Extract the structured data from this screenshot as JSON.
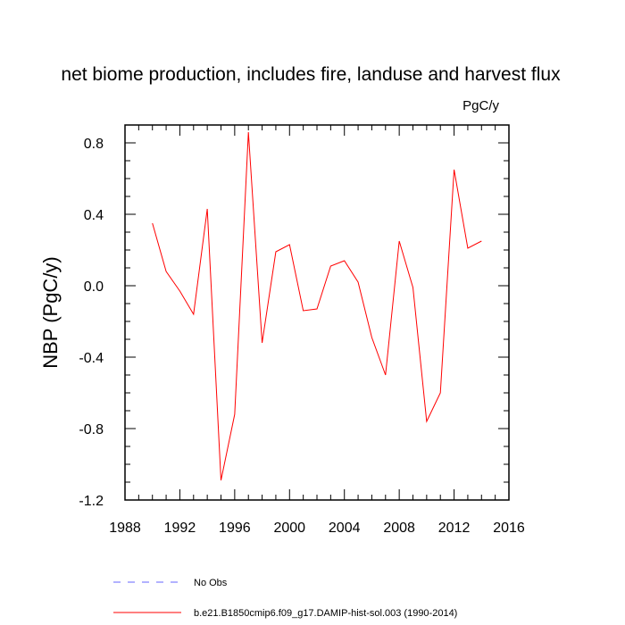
{
  "chart_data": {
    "type": "line",
    "title": "net biome production, includes fire, landuse and harvest flux",
    "units": "PgC/y",
    "ylabel": "NBP  (PgC/y)",
    "xlabel": "",
    "xlim": [
      1988,
      2016
    ],
    "ylim": [
      -1.2,
      0.9
    ],
    "x_ticks": [
      1988,
      1992,
      1996,
      2000,
      2004,
      2008,
      2012,
      2016
    ],
    "x_tick_labels": [
      "1988",
      "1992",
      "1996",
      "2000",
      "2004",
      "2008",
      "2012",
      "2016"
    ],
    "y_ticks": [
      -1.2,
      -0.8,
      -0.4,
      0.0,
      0.4,
      0.8
    ],
    "y_tick_labels": [
      "-1.2",
      "-0.8",
      "-0.4",
      "0.0",
      "0.4",
      "0.8"
    ],
    "grid": false,
    "legend_position": "bottom",
    "series": [
      {
        "name": "b.e21.B1850cmip6.f09_g17.DAMIP-hist-sol.003 (1990-2014)",
        "color": "#ff0000",
        "style": "solid",
        "x": [
          1990,
          1991,
          1992,
          1993,
          1994,
          1995,
          1996,
          1997,
          1998,
          1999,
          2000,
          2001,
          2002,
          2003,
          2004,
          2005,
          2006,
          2007,
          2008,
          2009,
          2010,
          2011,
          2012,
          2013,
          2014
        ],
        "y": [
          0.35,
          0.08,
          -0.03,
          -0.16,
          0.43,
          -1.09,
          -0.72,
          0.86,
          -0.32,
          0.19,
          0.23,
          -0.14,
          -0.13,
          0.11,
          0.14,
          0.02,
          -0.29,
          -0.5,
          0.25,
          -0.01,
          -0.76,
          -0.6,
          0.65,
          0.21,
          0.25
        ]
      }
    ],
    "legend": [
      {
        "label": "No Obs",
        "color": "#6666ff",
        "style": "dashed"
      },
      {
        "label": "b.e21.B1850cmip6.f09_g17.DAMIP-hist-sol.003 (1990-2014)",
        "color": "#ff0000",
        "style": "solid"
      }
    ]
  }
}
